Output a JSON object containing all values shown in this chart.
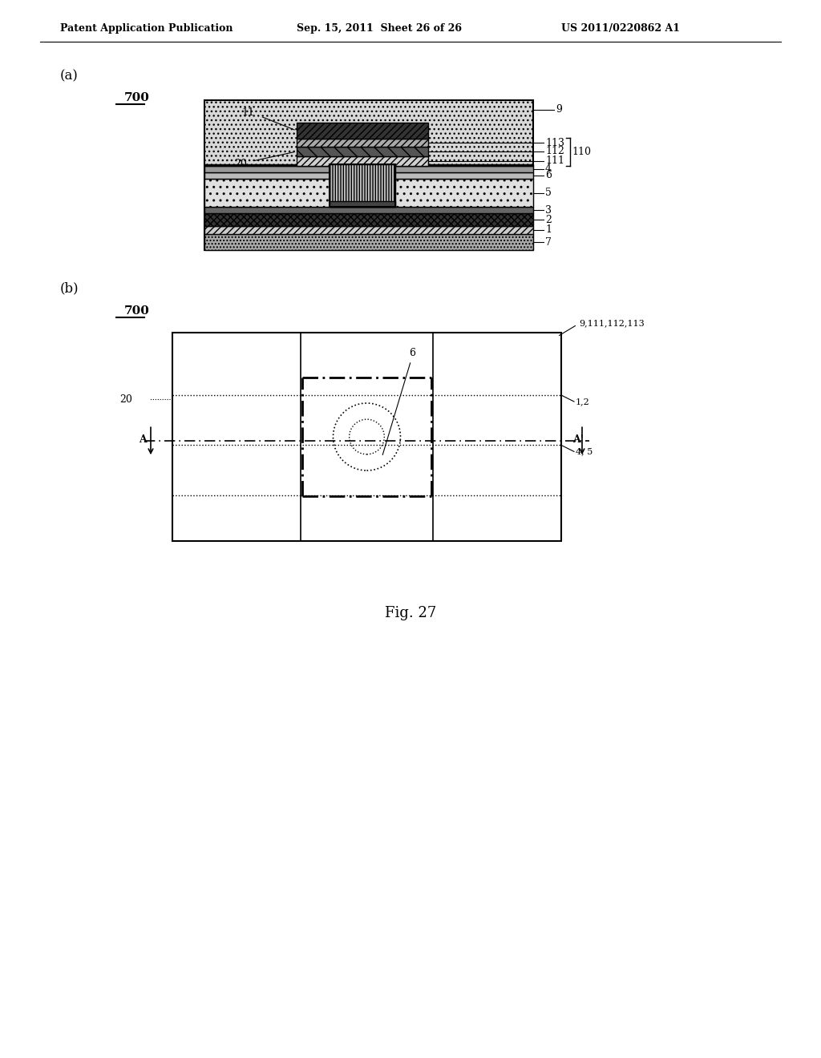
{
  "header_left": "Patent Application Publication",
  "header_mid": "Sep. 15, 2011  Sheet 26 of 26",
  "header_right": "US 2011/0220862 A1",
  "fig_caption": "Fig. 27",
  "bg_color": "#ffffff",
  "fig_label_a": "(a)",
  "fig_label_b": "(b)",
  "device_label": "700"
}
